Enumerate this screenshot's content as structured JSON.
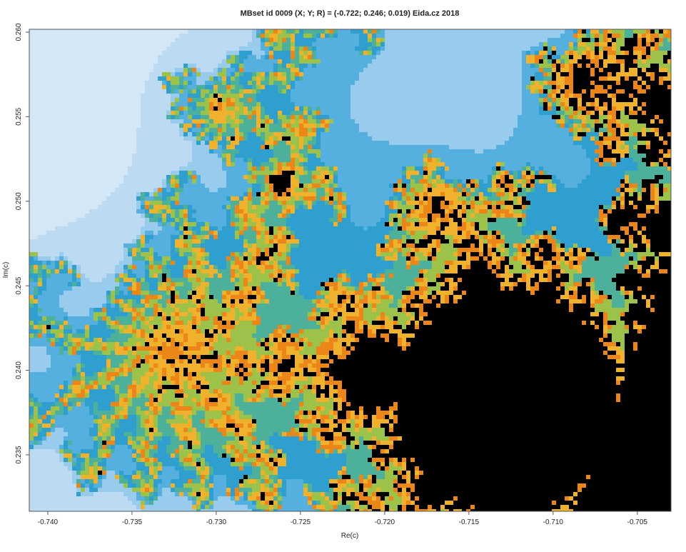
{
  "chart_data": {
    "type": "mandelbrot",
    "title": "MBset id 0009 (X; Y; R) = (-0.722; 0.246; 0.019) Eida.cz 2018",
    "x_label": "Re(c)",
    "y_label": "Im(c)",
    "xlim": [
      -0.7411,
      -0.703
    ],
    "ylim": [
      0.23166,
      0.26017
    ],
    "xticks": [
      {
        "value": -0.74,
        "label": "-0.740"
      },
      -0.735,
      {
        "value": -0.73,
        "label": "-0.730"
      },
      -0.725,
      {
        "value": -0.72,
        "label": "-0.720"
      },
      -0.715,
      {
        "value": -0.71,
        "label": "-0.710"
      },
      -0.705
    ],
    "yticks": [
      0.235,
      {
        "value": 0.24,
        "label": "0.240"
      },
      0.245,
      {
        "value": 0.25,
        "label": "0.250"
      },
      0.255,
      {
        "value": 0.26,
        "label": "0.260"
      }
    ]
  }
}
